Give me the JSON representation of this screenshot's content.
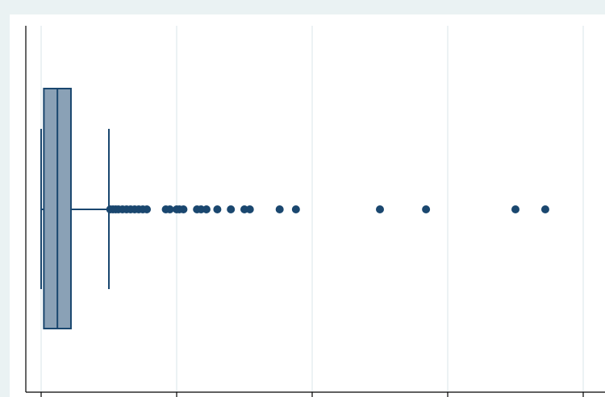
{
  "chart_data": {
    "type": "boxplot",
    "orientation": "horizontal",
    "title": "",
    "xlabel": "",
    "ylabel": "",
    "xlim": [
      -0.1,
      4.05
    ],
    "grid": true,
    "legend": "none",
    "box": {
      "min": 0,
      "whisker_low": 0,
      "q1": 0.02,
      "median": 0.12,
      "q3": 0.22,
      "whisker_high": 0.5
    },
    "outliers": [
      0.51,
      0.53,
      0.55,
      0.57,
      0.6,
      0.63,
      0.66,
      0.69,
      0.72,
      0.75,
      0.78,
      0.92,
      0.95,
      1.0,
      1.02,
      1.05,
      1.15,
      1.18,
      1.22,
      1.3,
      1.4,
      1.5,
      1.54,
      1.76,
      1.88,
      2.5,
      2.84,
      3.5,
      3.72
    ],
    "colors": {
      "box_fill": "#8aa1b6",
      "box_stroke": "#1a476f",
      "outlier": "#1a476f",
      "grid": "#e6eef1",
      "plot_bg": "#ffffff",
      "outer_bg": "#eaf2f3",
      "axis": "#000000"
    }
  }
}
